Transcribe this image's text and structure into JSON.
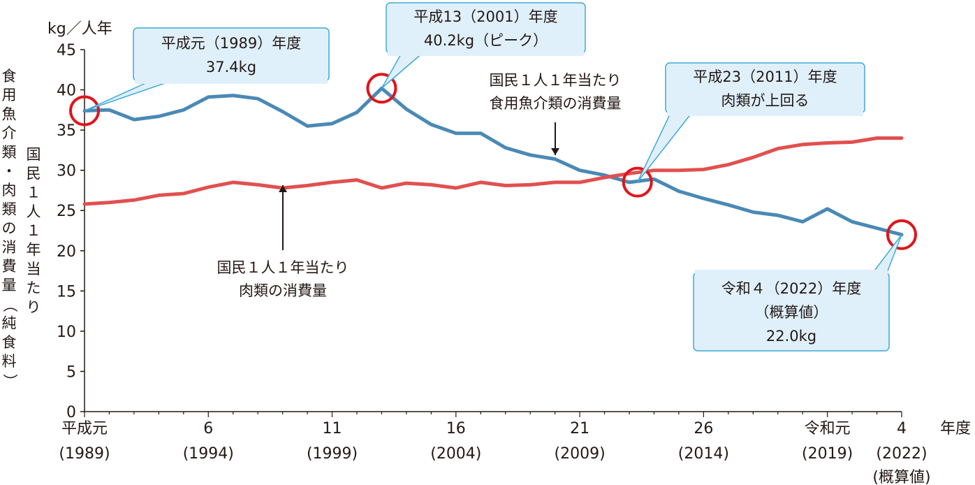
{
  "chart_data": {
    "type": "line",
    "unit": "kg／人年",
    "x_unit": "年度",
    "ylim": [
      0,
      45
    ],
    "yticks": [
      0,
      5,
      10,
      15,
      20,
      25,
      30,
      35,
      40,
      45
    ],
    "ylabel_outer": "食用魚介類・肉類の消費量（純食料）",
    "ylabel_inner": "国民１人１年当たり",
    "x": [
      1989,
      1990,
      1991,
      1992,
      1993,
      1994,
      1995,
      1996,
      1997,
      1998,
      1999,
      2000,
      2001,
      2002,
      2003,
      2004,
      2005,
      2006,
      2007,
      2008,
      2009,
      2010,
      2011,
      2012,
      2013,
      2014,
      2015,
      2016,
      2017,
      2018,
      2019,
      2020,
      2021,
      2022
    ],
    "xticks": [
      {
        "x": 1989,
        "era": "平成元",
        "year": "(1989)"
      },
      {
        "x": 1994,
        "era": "6",
        "year": "(1994)"
      },
      {
        "x": 1999,
        "era": "11",
        "year": "(1999)"
      },
      {
        "x": 2004,
        "era": "16",
        "year": "(2004)"
      },
      {
        "x": 2009,
        "era": "21",
        "year": "(2009)"
      },
      {
        "x": 2014,
        "era": "26",
        "year": "(2014)"
      },
      {
        "x": 2019,
        "era": "令和元",
        "year": "(2019)"
      },
      {
        "x": 2022,
        "era": "4",
        "year": "(2022)",
        "note": "(概算値)"
      }
    ],
    "series": [
      {
        "name": "国民１人１年当たり食用魚介類の消費量",
        "color": "#4a89b5",
        "values": [
          37.4,
          37.5,
          36.3,
          36.7,
          37.5,
          39.1,
          39.3,
          38.9,
          37.3,
          35.5,
          35.8,
          37.2,
          40.2,
          37.6,
          35.7,
          34.6,
          34.6,
          32.8,
          31.9,
          31.4,
          30.0,
          29.4,
          28.5,
          28.9,
          27.4,
          26.5,
          25.7,
          24.8,
          24.4,
          23.6,
          25.2,
          23.6,
          22.8,
          22.0
        ]
      },
      {
        "name": "国民１人１年当たり肉類の消費量",
        "color": "#e1504f",
        "values": [
          25.8,
          26.0,
          26.3,
          26.9,
          27.1,
          27.9,
          28.5,
          28.2,
          27.8,
          28.1,
          28.5,
          28.8,
          27.8,
          28.4,
          28.2,
          27.8,
          28.5,
          28.1,
          28.2,
          28.5,
          28.5,
          29.1,
          29.6,
          30.0,
          30.0,
          30.1,
          30.7,
          31.6,
          32.7,
          33.2,
          33.4,
          33.5,
          34.0,
          34.0
        ]
      }
    ],
    "callouts": [
      {
        "lines": [
          "平成元（1989）年度",
          "37.4kg"
        ]
      },
      {
        "lines": [
          "平成13（2001）年度",
          "40.2kg（ピーク）"
        ]
      },
      {
        "lines": [
          "平成23（2011）年度",
          "肉類が上回る"
        ]
      },
      {
        "lines": [
          "令和４（2022）年度",
          "（概算値）",
          "22.0kg"
        ]
      }
    ],
    "annotations": [
      {
        "lines": [
          "国民１人１年当たり",
          "食用魚介類の消費量"
        ]
      },
      {
        "lines": [
          "国民１人１年当たり",
          "肉類の消費量"
        ]
      }
    ],
    "colors": {
      "callout_fill": "#dff0fb",
      "callout_stroke": "#3fa9d8",
      "marker": "#e0141b",
      "axis": "#231815"
    }
  }
}
